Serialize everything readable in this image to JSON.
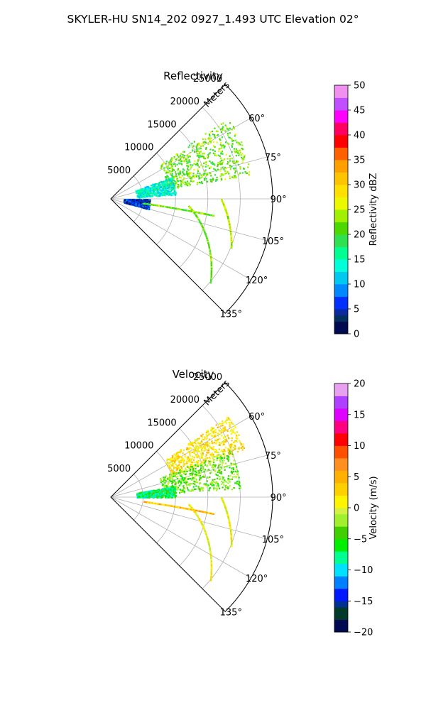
{
  "figure": {
    "suptitle": "SKYLER-HU  SN14_202  0927_1.493 UTC Elevation 02°"
  },
  "chart_data": [
    {
      "type": "heatmap",
      "projection": "polar-sector",
      "title": "Reflectivity",
      "radial_label": "Meters",
      "radial_ticks": [
        "5000",
        "10000",
        "15000",
        "20000",
        "25000"
      ],
      "radial_tick_values": [
        5000,
        10000,
        15000,
        20000,
        25000
      ],
      "rmax": 25000,
      "angle_ticks": [
        "60°",
        "75°",
        "90°",
        "105°",
        "120°",
        "135°"
      ],
      "angle_tick_values": [
        60,
        75,
        90,
        105,
        120,
        135
      ],
      "azimuth_range": [
        45,
        135
      ],
      "grid": true,
      "colorbar": {
        "label": "Reflectivity dBZ",
        "range": [
          0,
          50
        ],
        "ticks": [
          "0",
          "5",
          "10",
          "15",
          "20",
          "25",
          "30",
          "35",
          "40",
          "45",
          "50"
        ]
      },
      "features": [
        {
          "kind": "cluster",
          "az": [
            55,
            80
          ],
          "range": [
            9000,
            22000
          ],
          "value": 22
        },
        {
          "kind": "cluster",
          "az": [
            70,
            86
          ],
          "range": [
            4000,
            10000
          ],
          "value": 14
        },
        {
          "kind": "cluster",
          "az": [
            90,
            105
          ],
          "range": [
            2000,
            6000
          ],
          "value": 5
        },
        {
          "kind": "line",
          "az": [
            97,
            99
          ],
          "range": [
            5000,
            16000
          ],
          "value": 22
        },
        {
          "kind": "line",
          "az": [
            90,
            112
          ],
          "range": [
            17000,
            20000
          ],
          "value": 25
        },
        {
          "kind": "line",
          "az": [
            95,
            130
          ],
          "range": [
            12000,
            20000
          ],
          "value": 22
        }
      ]
    },
    {
      "type": "heatmap",
      "projection": "polar-sector",
      "title": "Velocity",
      "radial_label": "Meters",
      "radial_ticks": [
        "5000",
        "10000",
        "15000",
        "20000",
        "25000"
      ],
      "radial_tick_values": [
        5000,
        10000,
        15000,
        20000,
        25000
      ],
      "rmax": 25000,
      "angle_ticks": [
        "60°",
        "75°",
        "90°",
        "105°",
        "120°",
        "135°"
      ],
      "angle_tick_values": [
        60,
        75,
        90,
        105,
        120,
        135
      ],
      "azimuth_range": [
        45,
        135
      ],
      "grid": true,
      "colorbar": {
        "label": "Velocity (m/s)",
        "range": [
          -20,
          20
        ],
        "ticks": [
          "−20",
          "−15",
          "−10",
          "−5",
          "0",
          "5",
          "10",
          "15",
          "20"
        ]
      },
      "features": [
        {
          "kind": "cluster",
          "az": [
            55,
            70
          ],
          "range": [
            10000,
            22000
          ],
          "value": 2
        },
        {
          "kind": "cluster",
          "az": [
            68,
            86
          ],
          "range": [
            8000,
            20000
          ],
          "value": -3
        },
        {
          "kind": "cluster",
          "az": [
            80,
            90
          ],
          "range": [
            4000,
            10000
          ],
          "value": -7
        },
        {
          "kind": "line",
          "az": [
            97,
            99
          ],
          "range": [
            5000,
            16000
          ],
          "value": 4
        },
        {
          "kind": "line",
          "az": [
            90,
            112
          ],
          "range": [
            17000,
            20000
          ],
          "value": 1
        },
        {
          "kind": "line",
          "az": [
            95,
            130
          ],
          "range": [
            12000,
            20000
          ],
          "value": 1
        }
      ]
    }
  ]
}
